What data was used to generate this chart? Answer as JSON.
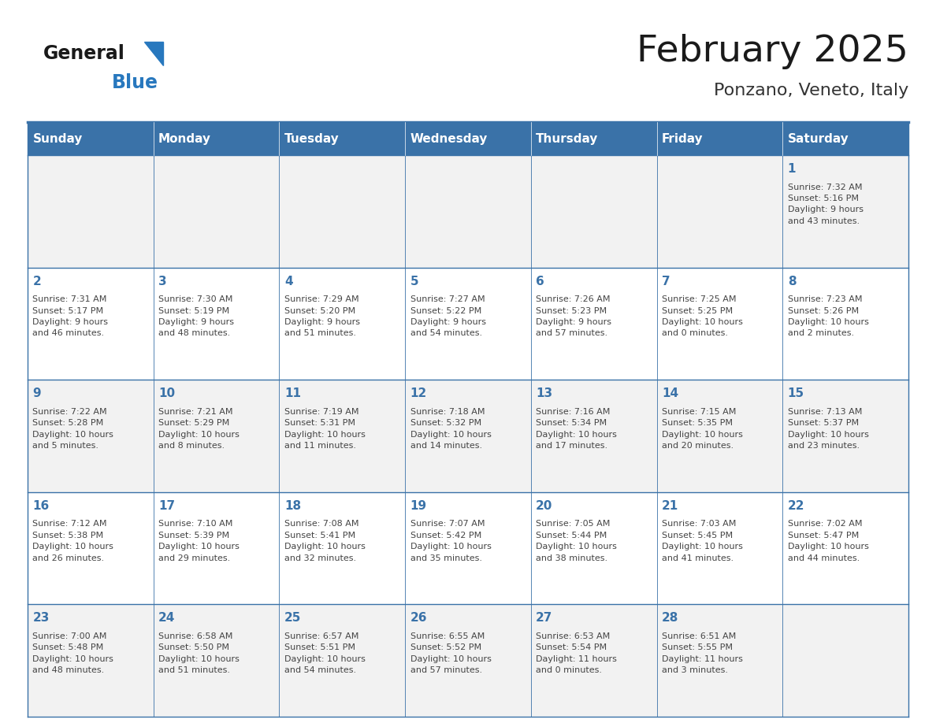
{
  "title": "February 2025",
  "subtitle": "Ponzano, Veneto, Italy",
  "days_of_week": [
    "Sunday",
    "Monday",
    "Tuesday",
    "Wednesday",
    "Thursday",
    "Friday",
    "Saturday"
  ],
  "header_bg": "#3A72A8",
  "header_text": "#FFFFFF",
  "cell_bg_odd": "#F2F2F2",
  "cell_bg_even": "#FFFFFF",
  "grid_line_color": "#3A72A8",
  "day_number_color": "#3A72A8",
  "info_text_color": "#444444",
  "title_color": "#1a1a1a",
  "subtitle_color": "#333333",
  "logo_general_color": "#1a1a1a",
  "logo_blue_color": "#2878BE",
  "weeks": [
    {
      "days": [
        {
          "day": null,
          "info": null
        },
        {
          "day": null,
          "info": null
        },
        {
          "day": null,
          "info": null
        },
        {
          "day": null,
          "info": null
        },
        {
          "day": null,
          "info": null
        },
        {
          "day": null,
          "info": null
        },
        {
          "day": 1,
          "info": "Sunrise: 7:32 AM\nSunset: 5:16 PM\nDaylight: 9 hours\nand 43 minutes."
        }
      ]
    },
    {
      "days": [
        {
          "day": 2,
          "info": "Sunrise: 7:31 AM\nSunset: 5:17 PM\nDaylight: 9 hours\nand 46 minutes."
        },
        {
          "day": 3,
          "info": "Sunrise: 7:30 AM\nSunset: 5:19 PM\nDaylight: 9 hours\nand 48 minutes."
        },
        {
          "day": 4,
          "info": "Sunrise: 7:29 AM\nSunset: 5:20 PM\nDaylight: 9 hours\nand 51 minutes."
        },
        {
          "day": 5,
          "info": "Sunrise: 7:27 AM\nSunset: 5:22 PM\nDaylight: 9 hours\nand 54 minutes."
        },
        {
          "day": 6,
          "info": "Sunrise: 7:26 AM\nSunset: 5:23 PM\nDaylight: 9 hours\nand 57 minutes."
        },
        {
          "day": 7,
          "info": "Sunrise: 7:25 AM\nSunset: 5:25 PM\nDaylight: 10 hours\nand 0 minutes."
        },
        {
          "day": 8,
          "info": "Sunrise: 7:23 AM\nSunset: 5:26 PM\nDaylight: 10 hours\nand 2 minutes."
        }
      ]
    },
    {
      "days": [
        {
          "day": 9,
          "info": "Sunrise: 7:22 AM\nSunset: 5:28 PM\nDaylight: 10 hours\nand 5 minutes."
        },
        {
          "day": 10,
          "info": "Sunrise: 7:21 AM\nSunset: 5:29 PM\nDaylight: 10 hours\nand 8 minutes."
        },
        {
          "day": 11,
          "info": "Sunrise: 7:19 AM\nSunset: 5:31 PM\nDaylight: 10 hours\nand 11 minutes."
        },
        {
          "day": 12,
          "info": "Sunrise: 7:18 AM\nSunset: 5:32 PM\nDaylight: 10 hours\nand 14 minutes."
        },
        {
          "day": 13,
          "info": "Sunrise: 7:16 AM\nSunset: 5:34 PM\nDaylight: 10 hours\nand 17 minutes."
        },
        {
          "day": 14,
          "info": "Sunrise: 7:15 AM\nSunset: 5:35 PM\nDaylight: 10 hours\nand 20 minutes."
        },
        {
          "day": 15,
          "info": "Sunrise: 7:13 AM\nSunset: 5:37 PM\nDaylight: 10 hours\nand 23 minutes."
        }
      ]
    },
    {
      "days": [
        {
          "day": 16,
          "info": "Sunrise: 7:12 AM\nSunset: 5:38 PM\nDaylight: 10 hours\nand 26 minutes."
        },
        {
          "day": 17,
          "info": "Sunrise: 7:10 AM\nSunset: 5:39 PM\nDaylight: 10 hours\nand 29 minutes."
        },
        {
          "day": 18,
          "info": "Sunrise: 7:08 AM\nSunset: 5:41 PM\nDaylight: 10 hours\nand 32 minutes."
        },
        {
          "day": 19,
          "info": "Sunrise: 7:07 AM\nSunset: 5:42 PM\nDaylight: 10 hours\nand 35 minutes."
        },
        {
          "day": 20,
          "info": "Sunrise: 7:05 AM\nSunset: 5:44 PM\nDaylight: 10 hours\nand 38 minutes."
        },
        {
          "day": 21,
          "info": "Sunrise: 7:03 AM\nSunset: 5:45 PM\nDaylight: 10 hours\nand 41 minutes."
        },
        {
          "day": 22,
          "info": "Sunrise: 7:02 AM\nSunset: 5:47 PM\nDaylight: 10 hours\nand 44 minutes."
        }
      ]
    },
    {
      "days": [
        {
          "day": 23,
          "info": "Sunrise: 7:00 AM\nSunset: 5:48 PM\nDaylight: 10 hours\nand 48 minutes."
        },
        {
          "day": 24,
          "info": "Sunrise: 6:58 AM\nSunset: 5:50 PM\nDaylight: 10 hours\nand 51 minutes."
        },
        {
          "day": 25,
          "info": "Sunrise: 6:57 AM\nSunset: 5:51 PM\nDaylight: 10 hours\nand 54 minutes."
        },
        {
          "day": 26,
          "info": "Sunrise: 6:55 AM\nSunset: 5:52 PM\nDaylight: 10 hours\nand 57 minutes."
        },
        {
          "day": 27,
          "info": "Sunrise: 6:53 AM\nSunset: 5:54 PM\nDaylight: 11 hours\nand 0 minutes."
        },
        {
          "day": 28,
          "info": "Sunrise: 6:51 AM\nSunset: 5:55 PM\nDaylight: 11 hours\nand 3 minutes."
        },
        {
          "day": null,
          "info": null
        }
      ]
    }
  ]
}
